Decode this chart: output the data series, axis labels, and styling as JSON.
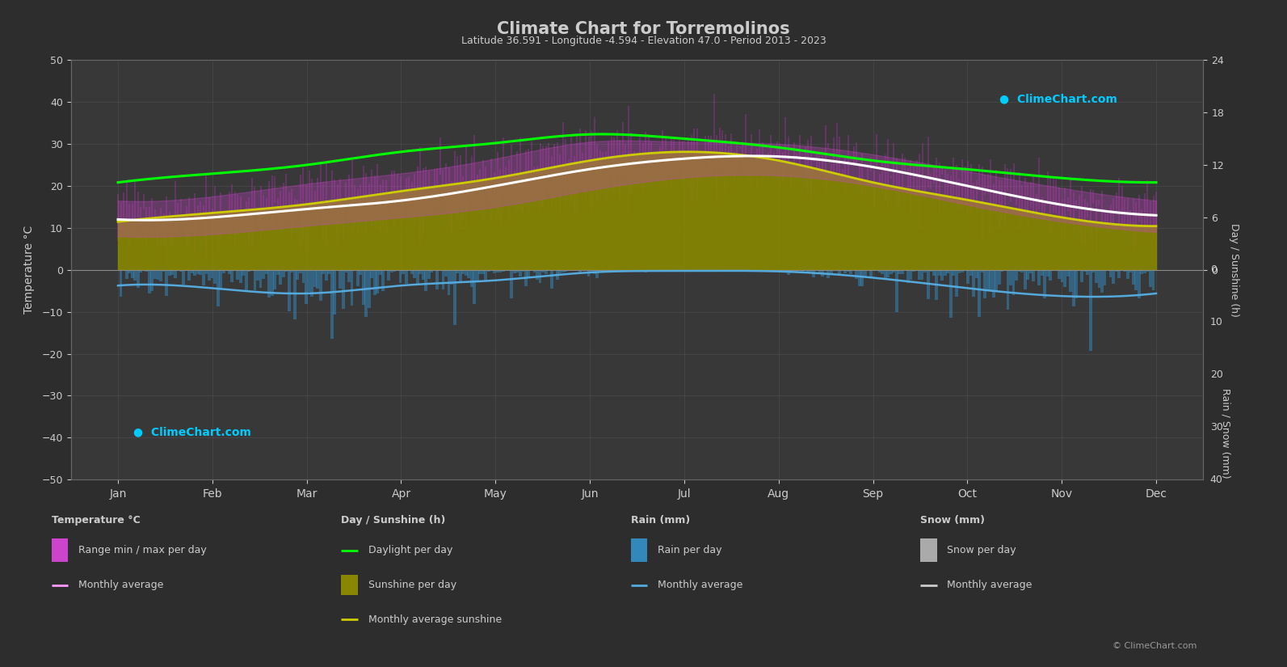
{
  "title": "Climate Chart for Torremolinos",
  "subtitle": "Latitude 36.591 - Longitude -4.594 - Elevation 47.0 - Period 2013 - 2023",
  "months": [
    "Jan",
    "Feb",
    "Mar",
    "Apr",
    "May",
    "Jun",
    "Jul",
    "Aug",
    "Sep",
    "Oct",
    "Nov",
    "Dec"
  ],
  "background_color": "#2d2d2d",
  "plot_bg_color": "#383838",
  "grid_color": "#555555",
  "text_color": "#cccccc",
  "temp_avg_monthly": [
    12.0,
    12.5,
    14.5,
    16.5,
    20.0,
    24.0,
    26.5,
    27.0,
    24.5,
    20.0,
    15.5,
    13.0
  ],
  "temp_max_monthly": [
    16.5,
    17.5,
    20.5,
    23.0,
    26.5,
    30.5,
    30.5,
    30.0,
    27.5,
    23.5,
    19.5,
    16.5
  ],
  "temp_min_monthly": [
    8.0,
    8.5,
    10.5,
    12.5,
    15.0,
    19.0,
    22.0,
    22.5,
    20.0,
    15.5,
    11.5,
    9.0
  ],
  "daylight_monthly": [
    10.0,
    11.0,
    12.0,
    13.5,
    14.5,
    15.5,
    15.0,
    14.0,
    12.5,
    11.5,
    10.5,
    10.0
  ],
  "sunshine_monthly": [
    5.5,
    6.5,
    7.5,
    9.0,
    10.5,
    12.5,
    13.5,
    12.5,
    10.0,
    8.0,
    6.0,
    5.0
  ],
  "rain_monthly_avg": [
    3.0,
    3.5,
    4.5,
    3.0,
    2.0,
    0.5,
    0.2,
    0.3,
    1.5,
    3.5,
    5.0,
    4.5
  ],
  "temp_range_color": "#cc44cc",
  "temp_avg_color": "#ff99ff",
  "daylight_color": "#00ff00",
  "sunshine_fill_color": "#888800",
  "sunshine_line_color": "#cccc00",
  "rain_bar_color": "#3388bb",
  "rain_line_color": "#55aadd",
  "snow_bar_color": "#aaaaaa",
  "snow_line_color": "#cccccc"
}
